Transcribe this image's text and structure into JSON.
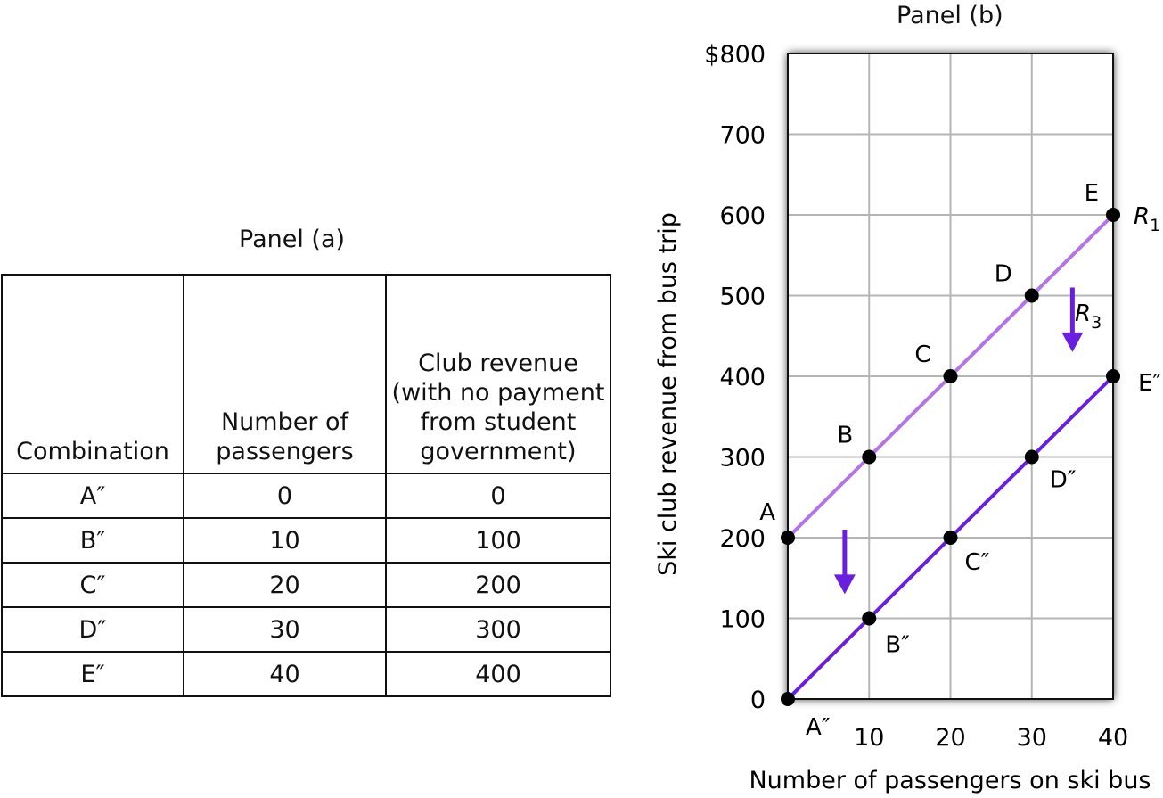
{
  "panel_a": {
    "title": "Panel (a)",
    "headers": [
      "Combination",
      "Number of passengers",
      "Club revenue (with no payment from student government)"
    ],
    "rows": [
      [
        "A″",
        "0",
        "0"
      ],
      [
        "B″",
        "10",
        "100"
      ],
      [
        "C″",
        "20",
        "200"
      ],
      [
        "D″",
        "30",
        "300"
      ],
      [
        "E″",
        "40",
        "400"
      ]
    ]
  },
  "chart_data": {
    "type": "line",
    "title": "Panel (b)",
    "xlabel": "Number of passengers on ski bus",
    "ylabel": "Ski club revenue from bus trip",
    "xlim": [
      0,
      40
    ],
    "ylim": [
      0,
      800
    ],
    "x_ticks": [
      "10",
      "20",
      "30",
      "40"
    ],
    "y_ticks": [
      "0",
      "100",
      "200",
      "300",
      "400",
      "500",
      "600",
      "700",
      "$800"
    ],
    "grid": true,
    "series": [
      {
        "name": "R1",
        "color": "#b473e6",
        "points": [
          {
            "x": 0,
            "y": 200,
            "label": "A"
          },
          {
            "x": 10,
            "y": 300,
            "label": "B"
          },
          {
            "x": 20,
            "y": 400,
            "label": "C"
          },
          {
            "x": 30,
            "y": 500,
            "label": "D"
          },
          {
            "x": 40,
            "y": 600,
            "label": "E"
          }
        ]
      },
      {
        "name": "R3",
        "color": "#6a1fe0",
        "points": [
          {
            "x": 0,
            "y": 0,
            "label": "A″"
          },
          {
            "x": 10,
            "y": 100,
            "label": "B″"
          },
          {
            "x": 20,
            "y": 200,
            "label": "C″"
          },
          {
            "x": 30,
            "y": 300,
            "label": "D″"
          },
          {
            "x": 40,
            "y": 400,
            "label": "E″"
          }
        ]
      }
    ],
    "curve_labels": [
      {
        "main": "R",
        "sub": "1"
      },
      {
        "main": "R",
        "sub": "3"
      }
    ],
    "shift_arrows": [
      {
        "x": 35,
        "from_y": 510,
        "to_y": 430
      },
      {
        "x": 7,
        "from_y": 210,
        "to_y": 130
      }
    ],
    "arrow_color": "#6a1fe0"
  }
}
